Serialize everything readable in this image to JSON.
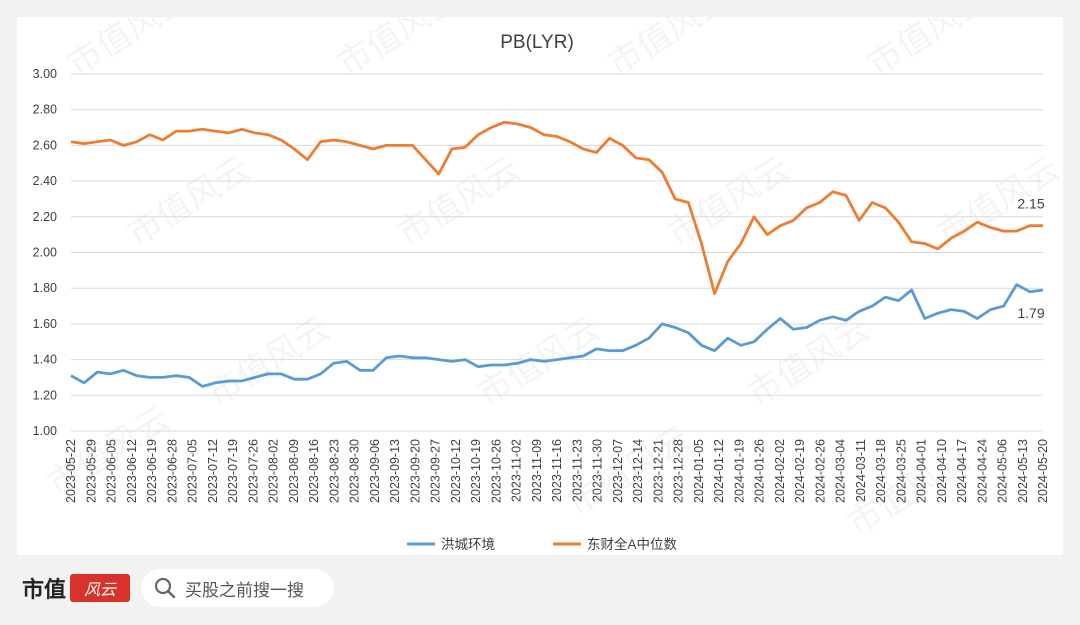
{
  "watermark": "市值风云",
  "brand": {
    "name": "市值",
    "seal": "风云"
  },
  "search": {
    "text": "买股之前搜一搜",
    "icon": "search-icon"
  },
  "colors": {
    "series1": "#5b9bd5",
    "series2": "#ed7d31",
    "grid": "#d9d9d9",
    "text": "#404040"
  },
  "chart_data": {
    "type": "line",
    "title": "PB(LYR)",
    "xlabel": "",
    "ylabel": "",
    "ylim": [
      1.0,
      3.0
    ],
    "y_ticks": [
      "1.00",
      "1.20",
      "1.40",
      "1.60",
      "1.80",
      "2.00",
      "2.20",
      "2.40",
      "2.60",
      "2.80",
      "3.00"
    ],
    "grid": "horizontal",
    "legend_position": "bottom",
    "x_tick_labels": [
      "2023-05-22",
      "2023-05-29",
      "2023-06-05",
      "2023-06-12",
      "2023-06-19",
      "2023-06-28",
      "2023-07-05",
      "2023-07-12",
      "2023-07-19",
      "2023-07-26",
      "2023-08-02",
      "2023-08-09",
      "2023-08-16",
      "2023-08-23",
      "2023-08-30",
      "2023-09-06",
      "2023-09-13",
      "2023-09-20",
      "2023-09-27",
      "2023-10-12",
      "2023-10-19",
      "2023-10-26",
      "2023-11-02",
      "2023-11-09",
      "2023-11-16",
      "2023-11-23",
      "2023-11-30",
      "2023-12-07",
      "2023-12-14",
      "2023-12-21",
      "2023-12-28",
      "2024-01-05",
      "2024-01-12",
      "2024-01-19",
      "2024-01-26",
      "2024-02-02",
      "2024-02-19",
      "2024-02-26",
      "2024-03-04",
      "2024-03-11",
      "2024-03-18",
      "2024-03-25",
      "2024-04-01",
      "2024-04-10",
      "2024-04-17",
      "2024-04-24",
      "2024-05-06",
      "2024-05-13",
      "2024-05-20"
    ],
    "series": [
      {
        "name": "洪城环境",
        "color": "#5b9bd5",
        "end_label": "1.79",
        "values": [
          1.31,
          1.27,
          1.33,
          1.32,
          1.34,
          1.31,
          1.3,
          1.3,
          1.31,
          1.3,
          1.25,
          1.27,
          1.28,
          1.28,
          1.3,
          1.32,
          1.32,
          1.29,
          1.29,
          1.32,
          1.38,
          1.39,
          1.34,
          1.34,
          1.41,
          1.42,
          1.41,
          1.41,
          1.4,
          1.39,
          1.4,
          1.36,
          1.37,
          1.37,
          1.38,
          1.4,
          1.39,
          1.4,
          1.41,
          1.42,
          1.46,
          1.45,
          1.45,
          1.48,
          1.52,
          1.6,
          1.58,
          1.55,
          1.48,
          1.45,
          1.52,
          1.48,
          1.5,
          1.57,
          1.63,
          1.57,
          1.58,
          1.62,
          1.64,
          1.62,
          1.67,
          1.7,
          1.75,
          1.73,
          1.79,
          1.63,
          1.66,
          1.68,
          1.67,
          1.63,
          1.68,
          1.7,
          1.82,
          1.78,
          1.79
        ]
      },
      {
        "name": "东财全A中位数",
        "color": "#ed7d31",
        "end_label": "2.15",
        "values": [
          2.62,
          2.61,
          2.62,
          2.63,
          2.6,
          2.62,
          2.66,
          2.63,
          2.68,
          2.68,
          2.69,
          2.68,
          2.67,
          2.69,
          2.67,
          2.66,
          2.63,
          2.58,
          2.52,
          2.62,
          2.63,
          2.62,
          2.6,
          2.58,
          2.6,
          2.6,
          2.6,
          2.52,
          2.44,
          2.58,
          2.59,
          2.66,
          2.7,
          2.73,
          2.72,
          2.7,
          2.66,
          2.65,
          2.62,
          2.58,
          2.56,
          2.64,
          2.6,
          2.53,
          2.52,
          2.45,
          2.3,
          2.28,
          2.05,
          1.77,
          1.95,
          2.05,
          2.2,
          2.1,
          2.15,
          2.18,
          2.25,
          2.28,
          2.34,
          2.32,
          2.18,
          2.28,
          2.25,
          2.17,
          2.06,
          2.05,
          2.02,
          2.08,
          2.12,
          2.17,
          2.14,
          2.12,
          2.12,
          2.15,
          2.15
        ]
      }
    ]
  }
}
